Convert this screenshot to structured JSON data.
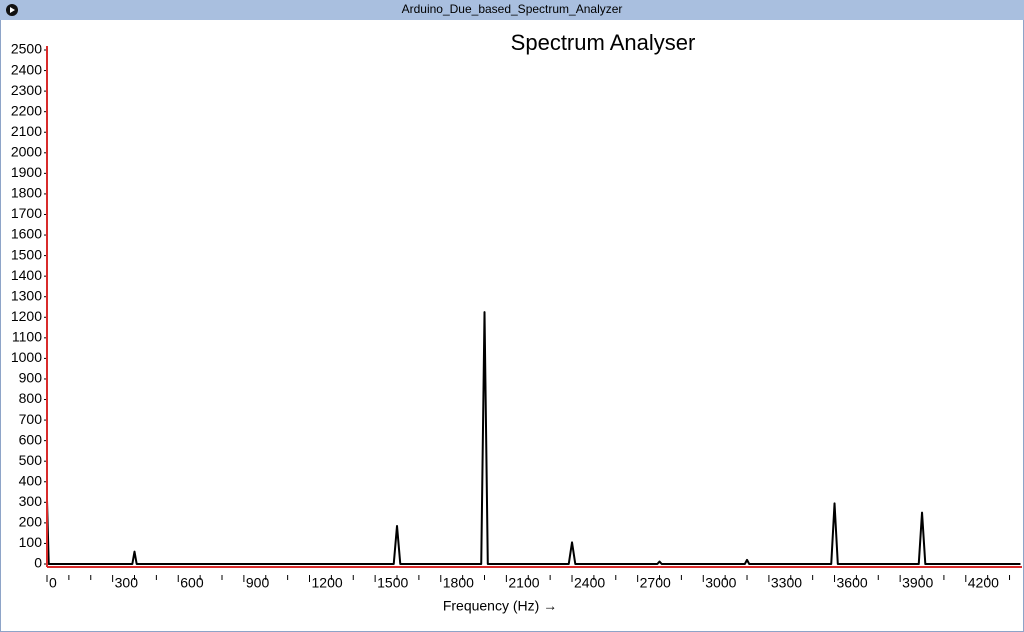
{
  "window": {
    "title": "Arduino_Due_based_Spectrum_Analyzer"
  },
  "chart_data": {
    "type": "line",
    "title": "Spectrum Analyser",
    "x_label": "Frequency (Hz) →",
    "x": [
      0,
      8,
      390,
      400,
      410,
      1585,
      1600,
      1615,
      1985,
      2000,
      2015,
      2385,
      2400,
      2415,
      2790,
      2800,
      2810,
      3190,
      3200,
      3210,
      3585,
      3600,
      3615,
      3985,
      4000,
      4015,
      4450
    ],
    "series": [
      {
        "color": "#000000",
        "values": [
          310,
          0,
          0,
          60,
          0,
          0,
          185,
          0,
          0,
          1225,
          0,
          0,
          105,
          0,
          0,
          12,
          0,
          0,
          20,
          0,
          0,
          295,
          0,
          0,
          250,
          0,
          0
        ]
      }
    ],
    "xlim": [
      0,
      4457
    ],
    "ylim": [
      0,
      2500
    ],
    "xticks": [
      0,
      300,
      600,
      900,
      1200,
      1500,
      1800,
      2100,
      2400,
      2700,
      3000,
      3300,
      3600,
      3900,
      4200
    ],
    "xminorticks": [
      100,
      200,
      400,
      500,
      700,
      800,
      1000,
      1100,
      1300,
      1400,
      1600,
      1700,
      1900,
      2000,
      2200,
      2300,
      2500,
      2600,
      2800,
      2900,
      3100,
      3200,
      3400,
      3500,
      3700,
      3800,
      4000,
      4100,
      4300,
      4400
    ],
    "yticks": [
      0,
      100,
      200,
      300,
      400,
      500,
      600,
      700,
      800,
      900,
      1000,
      1100,
      1200,
      1300,
      1400,
      1500,
      1600,
      1700,
      1800,
      1900,
      2000,
      2100,
      2200,
      2300,
      2400,
      2500
    ],
    "axis_color": "#d92b2b"
  }
}
